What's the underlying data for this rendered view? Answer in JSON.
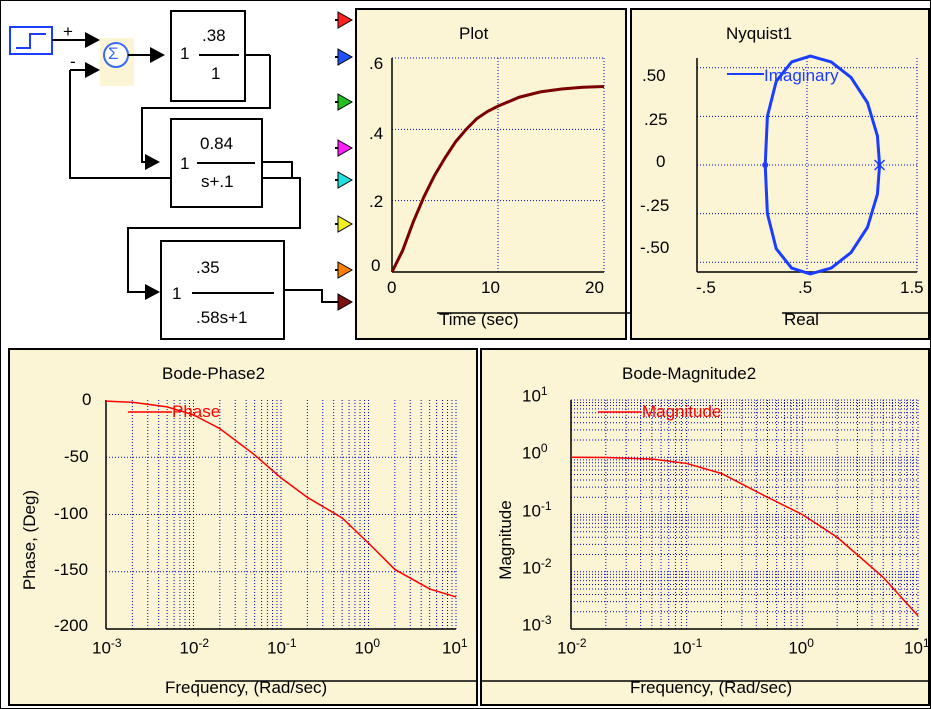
{
  "colors": {
    "panel_bg": "#fbf5d6",
    "grid": "#0000c8",
    "time_trace": "#7a0000",
    "nyquist_trace": "#1a3dff",
    "bode_trace": "#ff0000",
    "sum_block": "#3a6cf4"
  },
  "diagram": {
    "sum_signs": {
      "plus": "+",
      "minus": "-"
    },
    "sum_symbol": "Σ",
    "block1": {
      "gain": "1",
      "num": ".38",
      "den": "1"
    },
    "block2": {
      "gain": "1",
      "num": "0.84",
      "den": "s+.1"
    },
    "block3": {
      "gain": "1",
      "num": ".35",
      "den": ".58s+1"
    },
    "output_port_colors": [
      "#ff2020",
      "#2050ff",
      "#20c020",
      "#ff20ff",
      "#20e0e0",
      "#f0f020",
      "#ff8000",
      "#7a1010"
    ]
  },
  "plot": {
    "title": "Plot",
    "xlabel": "Time (sec)",
    "xticks": [
      "0",
      "10",
      "20"
    ],
    "yticks": [
      "0",
      ".2",
      ".4",
      ".6"
    ]
  },
  "nyquist": {
    "title": "Nyquist1",
    "legend": "Imaginary",
    "xlabel": "Real",
    "xticks": [
      "-.5",
      ".5",
      "1.5"
    ],
    "yticks": [
      ".50",
      ".25",
      "0",
      "-.25",
      "-.50"
    ]
  },
  "bode_phase": {
    "title": "Bode-Phase2",
    "legend": "Phase",
    "xlabel": "Frequency, (Rad/sec)",
    "ylabel": "Phase, (Deg)",
    "yticks": [
      "0",
      "-50",
      "-100",
      "-150",
      "-200"
    ],
    "xtick_base": "10",
    "xtick_exps": [
      "-3",
      "-2",
      "-1",
      "0",
      "1"
    ]
  },
  "bode_mag": {
    "title": "Bode-Magnitude2",
    "legend": "Magnitude",
    "xlabel": "Frequency, (Rad/sec)",
    "ylabel": "Magnitude",
    "ytick_base": "10",
    "ytick_exps": [
      "1",
      "0",
      "-1",
      "-2",
      "-3"
    ],
    "xtick_base": "10",
    "xtick_exps": [
      "-2",
      "-1",
      "0",
      "1"
    ]
  },
  "chart_data": [
    {
      "type": "line",
      "title": "Plot",
      "xlabel": "Time (sec)",
      "ylabel": "",
      "xlim": [
        0,
        20
      ],
      "ylim": [
        0,
        0.6
      ],
      "grid": true,
      "series": [
        {
          "x": [
            0,
            1,
            2,
            3,
            4,
            5,
            6,
            7,
            8,
            9,
            10,
            12,
            14,
            16,
            18,
            20
          ],
          "values": [
            0,
            0.06,
            0.14,
            0.21,
            0.27,
            0.32,
            0.365,
            0.4,
            0.43,
            0.45,
            0.465,
            0.49,
            0.505,
            0.513,
            0.518,
            0.52
          ]
        }
      ]
    },
    {
      "type": "line",
      "title": "Nyquist1",
      "xlabel": "Real",
      "ylabel": "",
      "xlim": [
        -0.5,
        1.5
      ],
      "ylim": [
        -0.55,
        0.55
      ],
      "grid": true,
      "legend": "top-left",
      "series": [
        {
          "name": "Imaginary",
          "x": [
            1.16,
            1.14,
            1.05,
            0.9,
            0.72,
            0.53,
            0.36,
            0.22,
            0.14,
            0.12,
            0.14,
            0.22,
            0.36,
            0.53,
            0.72,
            0.9,
            1.05,
            1.14,
            1.16
          ],
          "values": [
            0,
            0.15,
            0.32,
            0.45,
            0.53,
            0.56,
            0.53,
            0.43,
            0.25,
            0,
            -0.25,
            -0.43,
            -0.53,
            -0.56,
            -0.53,
            -0.45,
            -0.32,
            -0.15,
            0
          ]
        }
      ]
    },
    {
      "type": "line",
      "title": "Bode-Phase2",
      "xlabel": "Frequency, (Rad/sec)",
      "ylabel": "Phase, (Deg)",
      "xscale": "log",
      "xlim": [
        0.001,
        10
      ],
      "ylim": [
        -200,
        0
      ],
      "grid": true,
      "legend": "top-left",
      "series": [
        {
          "name": "Phase",
          "x": [
            0.001,
            0.002,
            0.005,
            0.01,
            0.02,
            0.05,
            0.1,
            0.2,
            0.5,
            1,
            2,
            5,
            10
          ],
          "values": [
            -1,
            -2,
            -6,
            -13,
            -25,
            -48,
            -68,
            -85,
            -103,
            -125,
            -148,
            -165,
            -172
          ]
        }
      ]
    },
    {
      "type": "line",
      "title": "Bode-Magnitude2",
      "xlabel": "Frequency, (Rad/sec)",
      "ylabel": "Magnitude",
      "xscale": "log",
      "yscale": "log",
      "xlim": [
        0.01,
        10
      ],
      "ylim": [
        0.001,
        10
      ],
      "grid": true,
      "legend": "top-left",
      "series": [
        {
          "name": "Magnitude",
          "x": [
            0.01,
            0.02,
            0.05,
            0.1,
            0.2,
            0.5,
            1,
            2,
            5,
            10
          ],
          "values": [
            1.0,
            0.99,
            0.93,
            0.78,
            0.52,
            0.2,
            0.1,
            0.04,
            0.008,
            0.0017
          ]
        }
      ]
    }
  ]
}
